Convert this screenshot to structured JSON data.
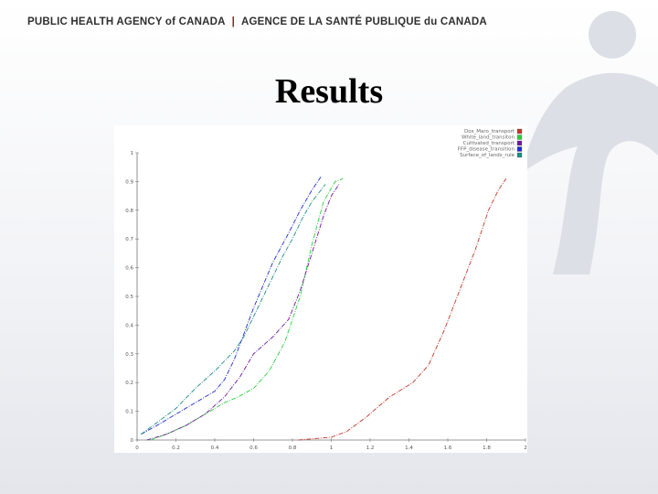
{
  "header": {
    "agency_en": "PUBLIC HEALTH AGENCY of CANADA",
    "separator": "|",
    "agency_fr": "AGENCE DE LA SANTÉ PUBLIQUE du CANADA"
  },
  "slide": {
    "title": "Results"
  },
  "colors": {
    "background": "#f2f3f6",
    "logo": "#dcdfe6",
    "separator": "#8c1d1d"
  },
  "chart_data": {
    "type": "line",
    "title": "",
    "xlabel": "",
    "ylabel": "",
    "xlim": [
      0,
      2
    ],
    "ylim": [
      0,
      1
    ],
    "xticks": [
      "0",
      "0.2",
      "0.4",
      "0.6",
      "0.8",
      "1",
      "1.2",
      "1.4",
      "1.6",
      "1.8",
      "2"
    ],
    "yticks": [
      "0",
      "0.1",
      "0.2",
      "0.3",
      "0.4",
      "0.5",
      "0.6",
      "0.7",
      "0.8",
      "0.9",
      "1"
    ],
    "grid": false,
    "legend_position": "top-right",
    "series": [
      {
        "name": "Dos_Maro_transport",
        "color": "#c0392b",
        "x": [
          0.83,
          0.92,
          1.0,
          1.08,
          1.18,
          1.3,
          1.42,
          1.5,
          1.58,
          1.66,
          1.74,
          1.81,
          1.86,
          1.9
        ],
        "y": [
          0.0,
          0.005,
          0.01,
          0.03,
          0.08,
          0.15,
          0.2,
          0.26,
          0.38,
          0.52,
          0.66,
          0.8,
          0.87,
          0.91
        ]
      },
      {
        "name": "White_land_transiton",
        "color": "#2ecc40",
        "x": [
          0.07,
          0.15,
          0.25,
          0.35,
          0.45,
          0.52,
          0.6,
          0.68,
          0.76,
          0.84,
          0.9,
          0.96,
          1.02,
          1.06
        ],
        "y": [
          0.0,
          0.02,
          0.05,
          0.09,
          0.13,
          0.15,
          0.18,
          0.24,
          0.34,
          0.5,
          0.68,
          0.83,
          0.9,
          0.91
        ]
      },
      {
        "name": "Cultivated_transport",
        "color": "#6a1b9a",
        "x": [
          0.05,
          0.15,
          0.25,
          0.35,
          0.45,
          0.53,
          0.6,
          0.7,
          0.78,
          0.84,
          0.9,
          0.96,
          1.0,
          1.04
        ],
        "y": [
          0.0,
          0.02,
          0.05,
          0.09,
          0.15,
          0.22,
          0.3,
          0.36,
          0.42,
          0.52,
          0.65,
          0.78,
          0.85,
          0.89
        ]
      },
      {
        "name": "FFP_disease_transition",
        "color": "#1f2bd1",
        "x": [
          0.02,
          0.1,
          0.2,
          0.3,
          0.4,
          0.45,
          0.5,
          0.55,
          0.6,
          0.65,
          0.7,
          0.78,
          0.84,
          0.9,
          0.95
        ],
        "y": [
          0.02,
          0.05,
          0.09,
          0.13,
          0.17,
          0.21,
          0.28,
          0.37,
          0.46,
          0.54,
          0.62,
          0.72,
          0.8,
          0.87,
          0.92
        ]
      },
      {
        "name": "Surface_of_lands_rule",
        "color": "#1f8a8a",
        "x": [
          0.02,
          0.1,
          0.2,
          0.3,
          0.4,
          0.5,
          0.55,
          0.6,
          0.65,
          0.7,
          0.75,
          0.8,
          0.85,
          0.9,
          0.97
        ],
        "y": [
          0.02,
          0.06,
          0.11,
          0.18,
          0.24,
          0.31,
          0.36,
          0.43,
          0.5,
          0.57,
          0.64,
          0.7,
          0.77,
          0.83,
          0.89
        ]
      }
    ]
  }
}
